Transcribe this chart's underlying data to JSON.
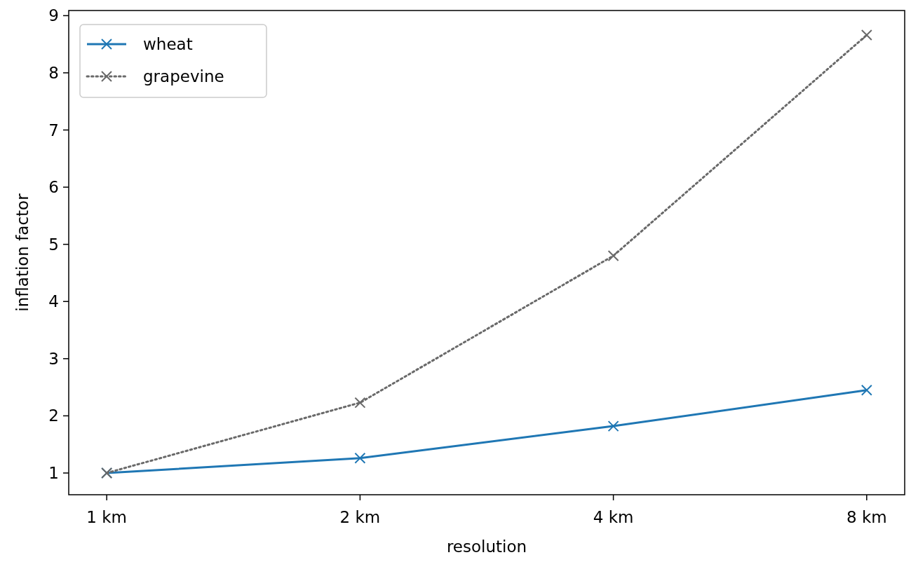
{
  "chart_data": {
    "type": "line",
    "xlabel": "resolution",
    "ylabel": "inflation factor",
    "categories": [
      "1 km",
      "2 km",
      "4 km",
      "8 km"
    ],
    "series": [
      {
        "name": "wheat",
        "color": "#1f77b4",
        "values": [
          1.0,
          1.26,
          1.82,
          2.45
        ],
        "line_style": "solid"
      },
      {
        "name": "grapevine",
        "color": "#696969",
        "values": [
          1.0,
          2.23,
          4.8,
          8.66
        ],
        "line_style": "dotted"
      }
    ],
    "ylim": [
      0.62,
      9.09
    ],
    "yticks": [
      1,
      2,
      3,
      4,
      5,
      6,
      7,
      8,
      9
    ],
    "marker": "cross",
    "legend": "top left",
    "grid": false
  }
}
